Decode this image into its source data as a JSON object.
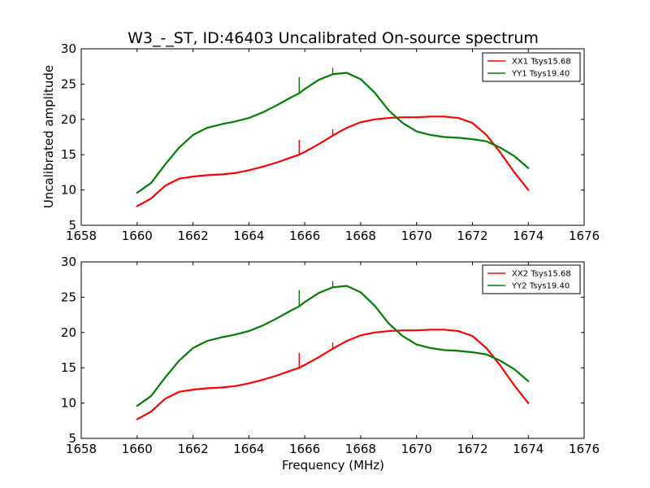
{
  "chart_data": [
    {
      "type": "line",
      "title": "W3_-_ST, ID:46403 Uncalibrated On-source spectrum",
      "xlabel": "",
      "ylabel": "Uncalibrated amplitude",
      "xlim": [
        1658,
        1676
      ],
      "ylim": [
        5,
        30
      ],
      "xticks": [
        "1658",
        "1660",
        "1662",
        "1664",
        "1666",
        "1668",
        "1670",
        "1672",
        "1674",
        "1676"
      ],
      "yticks": [
        "5",
        "10",
        "15",
        "20",
        "25",
        "30"
      ],
      "grid": false,
      "legend_position": "top-right",
      "series": [
        {
          "name": "XX1 Tsys15.68",
          "color": "#ff0000",
          "x": [
            1660.0,
            1660.5,
            1661.0,
            1661.5,
            1662.0,
            1662.5,
            1663.0,
            1663.5,
            1664.0,
            1664.5,
            1665.0,
            1665.5,
            1665.8,
            1666.0,
            1666.5,
            1667.0,
            1667.5,
            1668.0,
            1668.5,
            1669.0,
            1669.5,
            1670.0,
            1670.5,
            1671.0,
            1671.5,
            1672.0,
            1672.5,
            1673.0,
            1673.5,
            1674.0
          ],
          "y": [
            7.7,
            8.8,
            10.6,
            11.6,
            11.9,
            12.1,
            12.2,
            12.4,
            12.8,
            13.3,
            13.9,
            14.6,
            15.0,
            15.4,
            16.5,
            17.7,
            18.8,
            19.6,
            20.0,
            20.2,
            20.3,
            20.3,
            20.4,
            20.4,
            20.2,
            19.5,
            17.8,
            15.3,
            12.5,
            10.0
          ],
          "spikes": [
            {
              "x": 1665.8,
              "y": 17.1
            },
            {
              "x": 1667.0,
              "y": 18.6
            }
          ]
        },
        {
          "name": "YY1 Tsys19.40",
          "color": "#007f00",
          "x": [
            1660.0,
            1660.5,
            1661.0,
            1661.5,
            1662.0,
            1662.5,
            1663.0,
            1663.5,
            1664.0,
            1664.5,
            1665.0,
            1665.5,
            1665.8,
            1666.0,
            1666.5,
            1667.0,
            1667.5,
            1668.0,
            1668.5,
            1669.0,
            1669.5,
            1670.0,
            1670.5,
            1671.0,
            1671.5,
            1672.0,
            1672.5,
            1673.0,
            1673.5,
            1674.0
          ],
          "y": [
            9.6,
            11.0,
            13.6,
            16.0,
            17.8,
            18.8,
            19.3,
            19.7,
            20.2,
            21.0,
            22.0,
            23.1,
            23.7,
            24.3,
            25.6,
            26.4,
            26.6,
            25.7,
            23.8,
            21.3,
            19.5,
            18.3,
            17.8,
            17.5,
            17.4,
            17.2,
            16.9,
            16.0,
            14.8,
            13.1
          ],
          "spikes": [
            {
              "x": 1665.8,
              "y": 26.0
            },
            {
              "x": 1667.0,
              "y": 27.3
            }
          ]
        }
      ]
    },
    {
      "type": "line",
      "title": "",
      "xlabel": "Frequency (MHz)",
      "ylabel": "",
      "xlim": [
        1658,
        1676
      ],
      "ylim": [
        5,
        30
      ],
      "xticks": [
        "1658",
        "1660",
        "1662",
        "1664",
        "1666",
        "1668",
        "1670",
        "1672",
        "1674",
        "1676"
      ],
      "yticks": [
        "5",
        "10",
        "15",
        "20",
        "25",
        "30"
      ],
      "grid": false,
      "legend_position": "top-right",
      "series": [
        {
          "name": "XX2 Tsys15.68",
          "color": "#ff0000",
          "x": [
            1660.0,
            1660.5,
            1661.0,
            1661.5,
            1662.0,
            1662.5,
            1663.0,
            1663.5,
            1664.0,
            1664.5,
            1665.0,
            1665.5,
            1665.8,
            1666.0,
            1666.5,
            1667.0,
            1667.5,
            1668.0,
            1668.5,
            1669.0,
            1669.5,
            1670.0,
            1670.5,
            1671.0,
            1671.5,
            1672.0,
            1672.5,
            1673.0,
            1673.5,
            1674.0
          ],
          "y": [
            7.7,
            8.8,
            10.6,
            11.6,
            11.9,
            12.1,
            12.2,
            12.4,
            12.8,
            13.3,
            13.9,
            14.6,
            15.0,
            15.4,
            16.5,
            17.7,
            18.8,
            19.6,
            20.0,
            20.2,
            20.3,
            20.3,
            20.4,
            20.4,
            20.2,
            19.5,
            17.8,
            15.3,
            12.5,
            10.0
          ],
          "spikes": [
            {
              "x": 1665.8,
              "y": 17.1
            },
            {
              "x": 1667.0,
              "y": 18.6
            }
          ]
        },
        {
          "name": "YY2 Tsys19.40",
          "color": "#007f00",
          "x": [
            1660.0,
            1660.5,
            1661.0,
            1661.5,
            1662.0,
            1662.5,
            1663.0,
            1663.5,
            1664.0,
            1664.5,
            1665.0,
            1665.5,
            1665.8,
            1666.0,
            1666.5,
            1667.0,
            1667.5,
            1668.0,
            1668.5,
            1669.0,
            1669.5,
            1670.0,
            1670.5,
            1671.0,
            1671.5,
            1672.0,
            1672.5,
            1673.0,
            1673.5,
            1674.0
          ],
          "y": [
            9.6,
            11.0,
            13.6,
            16.0,
            17.8,
            18.8,
            19.3,
            19.7,
            20.2,
            21.0,
            22.0,
            23.1,
            23.7,
            24.3,
            25.6,
            26.4,
            26.6,
            25.7,
            23.8,
            21.3,
            19.5,
            18.3,
            17.8,
            17.5,
            17.4,
            17.2,
            16.9,
            16.0,
            14.8,
            13.1
          ],
          "spikes": [
            {
              "x": 1665.8,
              "y": 26.0
            },
            {
              "x": 1667.0,
              "y": 27.3
            }
          ]
        }
      ]
    }
  ]
}
